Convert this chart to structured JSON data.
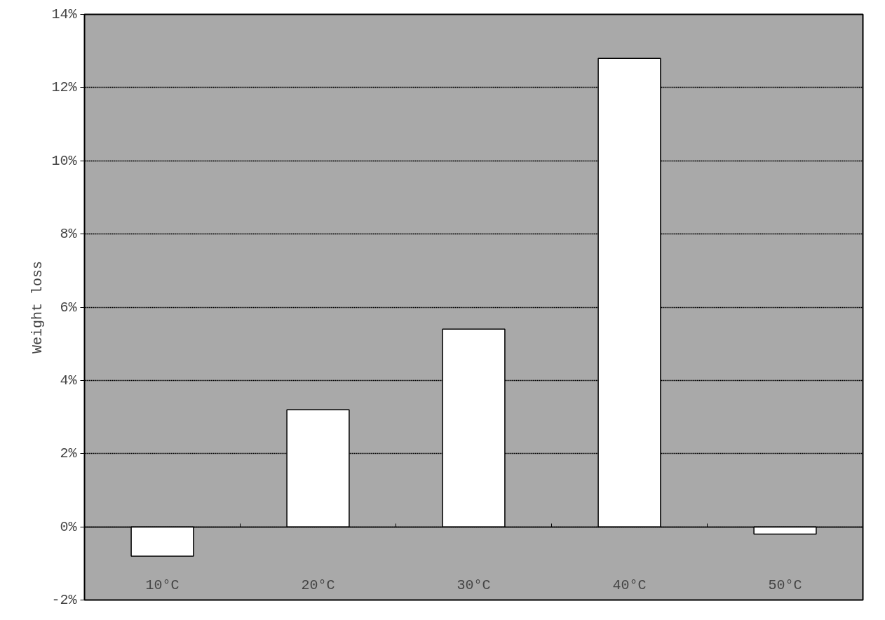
{
  "chart_data": {
    "type": "bar",
    "ylabel": "Weight loss",
    "categories": [
      "10°C",
      "20°C",
      "30°C",
      "40°C",
      "50°C"
    ],
    "values": [
      -0.8,
      3.2,
      5.4,
      12.8,
      -0.2
    ],
    "color": "#ffffff",
    "ylim": [
      -2,
      14
    ],
    "yticks": [
      {
        "value": -2,
        "label": "-2%"
      },
      {
        "value": 0,
        "label": "0%"
      },
      {
        "value": 2,
        "label": "2%"
      },
      {
        "value": 4,
        "label": "4%"
      },
      {
        "value": 6,
        "label": "6%"
      },
      {
        "value": 8,
        "label": "8%"
      },
      {
        "value": 10,
        "label": "10%"
      },
      {
        "value": 12,
        "label": "12%"
      },
      {
        "value": 14,
        "label": "14%"
      }
    ],
    "grid": "y"
  }
}
